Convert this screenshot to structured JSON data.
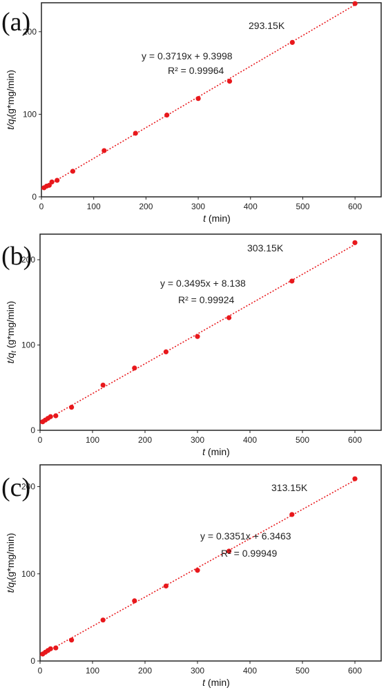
{
  "chart_data": [
    {
      "type": "scatter",
      "panel_label": "(a)",
      "temperature": "293.15K",
      "equation": "y = 0.3719x + 9.3998",
      "r2": "R² = 0.99964",
      "fit": {
        "slope": 0.3719,
        "intercept": 9.3998
      },
      "xlabel_italic": "t",
      "xlabel_rest": " (min)",
      "ylabel_pre": "t/",
      "ylabel_q": "q",
      "ylabel_sub": "t",
      "ylabel_rest": "(g*mg/min)",
      "xlim": [
        0,
        650
      ],
      "ylim": [
        0,
        235
      ],
      "xticks": [
        0,
        100,
        200,
        300,
        400,
        500,
        600
      ],
      "yticks": [
        0,
        100,
        200
      ],
      "grid": false,
      "series": [
        {
          "x": [
            5,
            10,
            15,
            20,
            30,
            60,
            120,
            180,
            240,
            300,
            360,
            480,
            600
          ],
          "y": [
            11,
            13,
            14,
            18,
            20,
            31,
            56,
            77,
            99,
            119,
            140,
            187,
            234
          ]
        }
      ]
    },
    {
      "type": "scatter",
      "panel_label": "(b)",
      "temperature": "303.15K",
      "equation": "y = 0.3495x + 8.138",
      "r2": "R² = 0.99924",
      "fit": {
        "slope": 0.3495,
        "intercept": 8.138
      },
      "xlabel_italic": "t",
      "xlabel_rest": " (min)",
      "ylabel_pre": "t/",
      "ylabel_q": "q",
      "ylabel_sub": "t",
      "ylabel_rest": " (g*mg/min)",
      "xlim": [
        0,
        650
      ],
      "ylim": [
        0,
        230
      ],
      "xticks": [
        0,
        100,
        200,
        300,
        400,
        500,
        600
      ],
      "yticks": [
        0,
        100,
        200
      ],
      "grid": false,
      "series": [
        {
          "x": [
            5,
            10,
            15,
            20,
            30,
            60,
            120,
            180,
            240,
            300,
            360,
            480,
            600
          ],
          "y": [
            10,
            12,
            14,
            16,
            17,
            27,
            53,
            73,
            92,
            110,
            132,
            175,
            220
          ]
        }
      ]
    },
    {
      "type": "scatter",
      "panel_label": "(c)",
      "temperature": "313.15K",
      "equation": "y = 0.3351x + 6.3463",
      "r2": "R² = 0.99949",
      "fit": {
        "slope": 0.3351,
        "intercept": 6.3463
      },
      "xlabel_italic": "t",
      "xlabel_rest": " (min)",
      "ylabel_pre": "t/",
      "ylabel_q": "q",
      "ylabel_sub": "t",
      "ylabel_rest": "(g*mg/min)",
      "xlim": [
        0,
        650
      ],
      "ylim": [
        0,
        225
      ],
      "xticks": [
        0,
        100,
        200,
        300,
        400,
        500,
        600
      ],
      "yticks": [
        0,
        100,
        200
      ],
      "grid": false,
      "series": [
        {
          "x": [
            5,
            10,
            15,
            20,
            30,
            60,
            120,
            180,
            240,
            300,
            360,
            480,
            600
          ],
          "y": [
            8,
            10,
            12,
            14,
            15,
            24,
            47,
            69,
            86,
            104,
            126,
            168,
            209
          ]
        }
      ]
    }
  ],
  "colors": {
    "points": "#e8181c",
    "fit_line": "#e8181c",
    "axes": "#222222"
  }
}
